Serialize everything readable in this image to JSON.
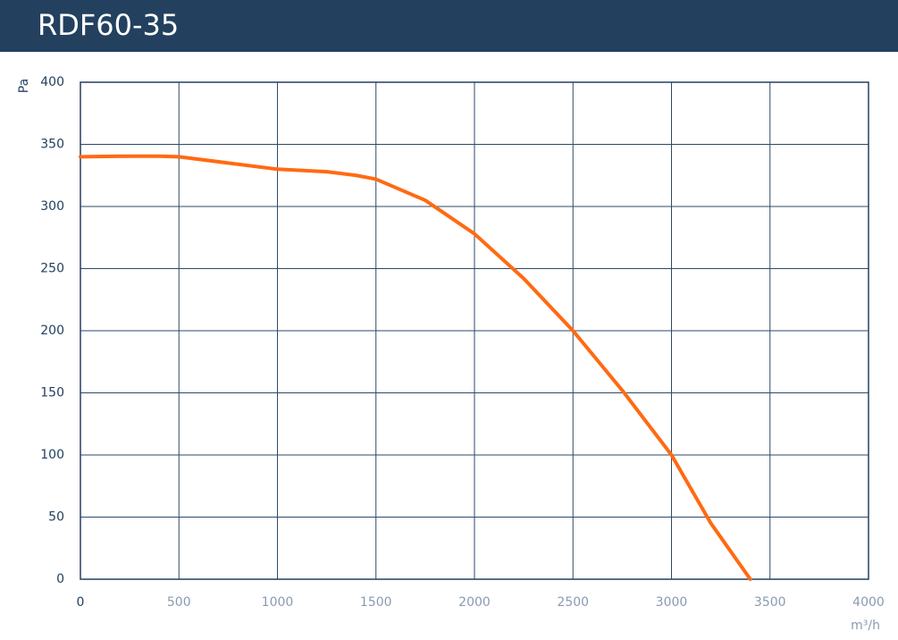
{
  "chart_data": {
    "type": "line",
    "title": "RDF60-35",
    "y_label": "Pa",
    "x_label": "m³/h",
    "x": [
      0,
      250,
      400,
      500,
      750,
      1000,
      1250,
      1400,
      1500,
      1750,
      2000,
      2250,
      2500,
      2750,
      3000,
      3200,
      3400
    ],
    "series": [
      {
        "name": "RDF60-35",
        "color": "#ff6a13",
        "values": [
          340,
          340.5,
          340.5,
          340,
          335,
          330,
          328,
          325,
          322,
          305,
          278,
          242,
          200,
          152,
          100,
          45,
          0
        ]
      }
    ],
    "xlim": [
      0,
      4000
    ],
    "xticks": [
      0,
      500,
      1000,
      1500,
      2000,
      2500,
      3000,
      3500,
      4000
    ],
    "ylim": [
      0,
      400
    ],
    "yticks": [
      0,
      50,
      100,
      150,
      200,
      250,
      300,
      350,
      400
    ],
    "grid": true
  }
}
